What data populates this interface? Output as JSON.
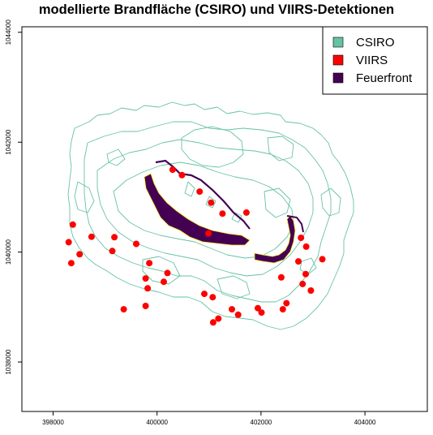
{
  "title": "modellierte Brandfläche (CSIRO) und VIIRS-Detektionen",
  "legend": [
    {
      "label": "CSIRO",
      "color": "#66c2a5"
    },
    {
      "label": "VIIRS",
      "color": "#ff0000"
    },
    {
      "label": "Feuerfront",
      "color": "#440154"
    }
  ],
  "chart_data": {
    "type": "scatter",
    "title": "modellierte Brandfläche (CSIRO) und VIIRS-Detektionen",
    "xlim": [
      397400,
      405200
    ],
    "ylim": [
      1037100,
      1044100
    ],
    "x_ticks": [
      398000,
      400000,
      402000,
      404000
    ],
    "y_ticks": [
      1038000,
      1040000,
      1042000,
      1044000
    ],
    "x_tick_labels": [
      "398000",
      "400000",
      "402000",
      "404000"
    ],
    "y_tick_labels": [
      "1038000",
      "1040000",
      "1042000",
      "1044000"
    ],
    "legend_position": "top-right",
    "grid": false,
    "series": [
      {
        "name": "VIIRS",
        "color": "#ff0000",
        "points": [
          [
            400300,
            1041500
          ],
          [
            400480,
            1041400
          ],
          [
            400820,
            1041100
          ],
          [
            401040,
            1040900
          ],
          [
            401260,
            1040700
          ],
          [
            401720,
            1040720
          ],
          [
            398380,
            1040500
          ],
          [
            398740,
            1040280
          ],
          [
            398300,
            1040180
          ],
          [
            399180,
            1040270
          ],
          [
            399600,
            1040150
          ],
          [
            398510,
            1039960
          ],
          [
            399140,
            1040020
          ],
          [
            398350,
            1039800
          ],
          [
            399850,
            1039800
          ],
          [
            399780,
            1039520
          ],
          [
            400200,
            1039620
          ],
          [
            400130,
            1039460
          ],
          [
            399820,
            1039340
          ],
          [
            400910,
            1039240
          ],
          [
            401070,
            1039180
          ],
          [
            399360,
            1038960
          ],
          [
            399780,
            1039020
          ],
          [
            401440,
            1038960
          ],
          [
            401560,
            1038860
          ],
          [
            401080,
            1038720
          ],
          [
            401940,
            1038980
          ],
          [
            402010,
            1038900
          ],
          [
            402390,
            1039540
          ],
          [
            402770,
            1040260
          ],
          [
            402870,
            1040100
          ],
          [
            402720,
            1039830
          ],
          [
            403180,
            1039870
          ],
          [
            402860,
            1039600
          ],
          [
            402800,
            1039420
          ],
          [
            402960,
            1039300
          ],
          [
            402490,
            1039070
          ],
          [
            402420,
            1038960
          ],
          [
            401180,
            1038790
          ],
          [
            400990,
            1040340
          ]
        ]
      }
    ],
    "feuerfront_regions": 3,
    "csiro_perimeter_lines": 1
  }
}
